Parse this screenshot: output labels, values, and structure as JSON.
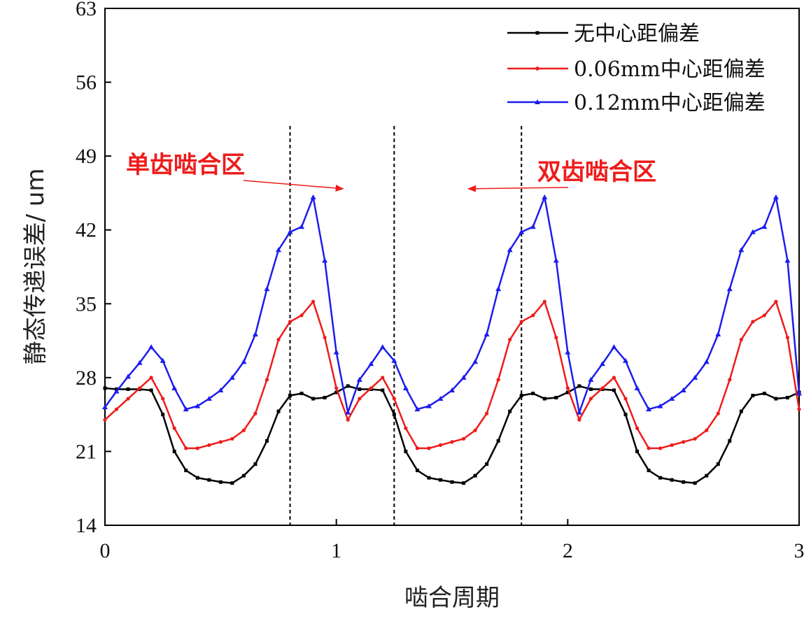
{
  "chart_data": {
    "type": "line",
    "xlabel": "啮合周期",
    "ylabel": "静态传递误差/ um",
    "xlim": [
      0,
      3
    ],
    "ylim": [
      14,
      63
    ],
    "xticks": [
      "0",
      "1",
      "2",
      "3"
    ],
    "yticks": [
      "14",
      "21",
      "28",
      "35",
      "42",
      "49",
      "56",
      "63"
    ],
    "grid": false,
    "legend_position": "top-right",
    "x": [
      0,
      0.05,
      0.1,
      0.15,
      0.2,
      0.25,
      0.3,
      0.35,
      0.4,
      0.45,
      0.5,
      0.55,
      0.6,
      0.65,
      0.7,
      0.75,
      0.8,
      0.85,
      0.9,
      0.95,
      1.0,
      1.05,
      1.1,
      1.15,
      1.2,
      1.25,
      1.3,
      1.35,
      1.4,
      1.45,
      1.5,
      1.55,
      1.6,
      1.65,
      1.7,
      1.75,
      1.8,
      1.85,
      1.9,
      1.95,
      2.0,
      2.05,
      2.1,
      2.15,
      2.2,
      2.25,
      2.3,
      2.35,
      2.4,
      2.45,
      2.5,
      2.55,
      2.6,
      2.65,
      2.7,
      2.75,
      2.8,
      2.85,
      2.9,
      2.95,
      3.0
    ],
    "series": [
      {
        "name": "无中心距偏差",
        "color": "#000000",
        "marker": "square",
        "values": [
          27.0,
          26.9,
          26.9,
          26.9,
          26.8,
          24.5,
          21.0,
          19.2,
          18.5,
          18.3,
          18.1,
          18.0,
          18.7,
          19.8,
          22.0,
          24.8,
          26.3,
          26.5,
          26.0,
          26.1,
          26.6,
          27.2,
          26.9,
          26.9,
          26.8,
          24.5,
          21.0,
          19.2,
          18.5,
          18.3,
          18.1,
          18.0,
          18.7,
          19.8,
          22.0,
          24.8,
          26.3,
          26.5,
          26.0,
          26.1,
          26.6,
          27.2,
          26.9,
          26.9,
          26.8,
          24.5,
          21.0,
          19.2,
          18.5,
          18.3,
          18.1,
          18.0,
          18.7,
          19.8,
          22.0,
          24.8,
          26.3,
          26.5,
          26.0,
          26.1,
          26.6
        ]
      },
      {
        "name": "0.06mm中心距偏差",
        "color": "#ee1c1c",
        "marker": "dot",
        "values": [
          24.0,
          25.0,
          26.0,
          27.0,
          28.0,
          26.0,
          23.2,
          21.3,
          21.3,
          21.6,
          21.9,
          22.2,
          23.0,
          24.6,
          27.8,
          31.6,
          33.3,
          33.9,
          35.2,
          31.8,
          27.0,
          24.0,
          26.0,
          27.0,
          28.0,
          26.0,
          23.2,
          21.3,
          21.3,
          21.6,
          21.9,
          22.2,
          23.0,
          24.6,
          27.8,
          31.6,
          33.3,
          33.9,
          35.2,
          31.8,
          27.0,
          24.0,
          26.0,
          27.0,
          28.0,
          26.0,
          23.2,
          21.3,
          21.3,
          21.6,
          21.9,
          22.2,
          23.0,
          24.6,
          27.8,
          31.6,
          33.3,
          33.9,
          35.2,
          31.8,
          25.0
        ]
      },
      {
        "name": "0.12mm中心距偏差",
        "color": "#1c1cee",
        "marker": "triangle",
        "values": [
          25.2,
          26.7,
          28.1,
          29.4,
          30.9,
          29.6,
          27.0,
          25.0,
          25.3,
          26.0,
          26.8,
          28.0,
          29.5,
          32.1,
          36.4,
          40.1,
          41.8,
          42.3,
          45.1,
          39.1,
          30.4,
          24.7,
          27.8,
          29.3,
          30.9,
          29.6,
          27.0,
          25.0,
          25.3,
          26.0,
          26.8,
          28.0,
          29.5,
          32.1,
          36.4,
          40.1,
          41.8,
          42.3,
          45.1,
          39.1,
          30.4,
          24.7,
          27.8,
          29.3,
          30.9,
          29.6,
          27.0,
          25.0,
          25.3,
          26.0,
          26.8,
          28.0,
          29.5,
          32.1,
          36.4,
          40.1,
          41.8,
          42.3,
          45.1,
          39.1,
          26.5
        ]
      }
    ],
    "vlines": [
      0.8,
      1.25,
      1.8
    ],
    "annotations": [
      {
        "text": "单齿啮合区",
        "color": "#ee1c1c",
        "arrow_to": [
          1.03,
          45.9
        ]
      },
      {
        "text": "双齿啮合区",
        "color": "#ee1c1c",
        "arrow_to": [
          1.57,
          45.9
        ]
      }
    ]
  }
}
